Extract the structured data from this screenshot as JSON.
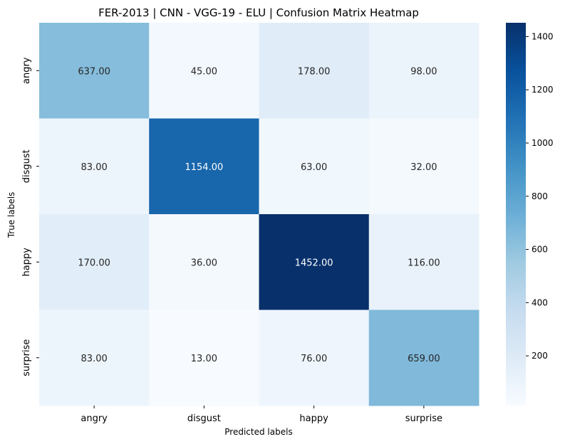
{
  "chart_data": {
    "type": "heatmap",
    "title": "FER-2013 | CNN - VGG-19 - ELU | Confusion Matrix Heatmap",
    "xlabel": "Predicted labels",
    "ylabel": "True labels",
    "x_categories": [
      "angry",
      "disgust",
      "happy",
      "surprise"
    ],
    "y_categories": [
      "angry",
      "disgust",
      "happy",
      "surprise"
    ],
    "values": [
      [
        637,
        45,
        178,
        98
      ],
      [
        83,
        1154,
        63,
        32
      ],
      [
        170,
        36,
        1452,
        116
      ],
      [
        83,
        13,
        76,
        659
      ]
    ],
    "value_format": "0.00",
    "colormap": "Blues",
    "colorbar": {
      "min": 13,
      "max": 1452,
      "ticks": [
        200,
        400,
        600,
        800,
        1000,
        1200,
        1400
      ]
    },
    "grid": false,
    "legend": "colorbar-right"
  }
}
